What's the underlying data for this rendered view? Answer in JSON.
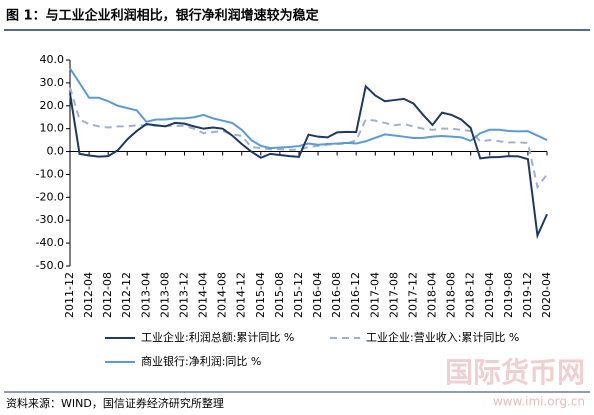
{
  "chart_data": {
    "type": "line",
    "title": "图 1：与工业企业利润相比，银行净利润增速较为稳定",
    "source": "资料来源：WIND，国信证券经济研究所整理",
    "watermark": "国际货币网",
    "watermark_url": "www.imi.org.cn",
    "categories": [
      "2011-12",
      null,
      "2012-04",
      null,
      "2012-08",
      null,
      "2012-12",
      null,
      "2013-04",
      null,
      "2013-08",
      null,
      "2013-12",
      null,
      "2014-04",
      null,
      "2014-08",
      null,
      "2014-12",
      null,
      "2015-04",
      null,
      "2015-08",
      null,
      "2015-12",
      null,
      "2016-04",
      null,
      "2016-08",
      null,
      "2016-12",
      null,
      "2017-04",
      null,
      "2017-08",
      null,
      "2017-12",
      null,
      "2018-04",
      null,
      "2018-08",
      null,
      "2018-12",
      null,
      "2019-04",
      null,
      "2019-08",
      null,
      "2019-12",
      null,
      "2020-04"
    ],
    "series": [
      {
        "name": "工业企业:利润总额:累计同比 %",
        "color": "#1f3864",
        "dashed": false,
        "values": [
          25.4,
          -1,
          -1.7,
          -2.2,
          -2,
          0.5,
          5.3,
          9,
          12,
          11.5,
          11,
          12.5,
          12.2,
          11,
          10,
          10.5,
          10,
          7,
          3.3,
          0,
          -2.7,
          -1,
          -1.5,
          -2,
          -2.3,
          7.4,
          6.5,
          6.2,
          8.4,
          8.6,
          8.5,
          28.5,
          24.5,
          22,
          22.5,
          23,
          21,
          16.1,
          11.6,
          17,
          16,
          14,
          10.3,
          -3,
          -2.5,
          -2.4,
          -2,
          -2.1,
          -3.3,
          -36.7,
          -27.4
        ]
      },
      {
        "name": "工业企业:营业收入:累计同比 %",
        "color": "#9fb1cc",
        "dashed": true,
        "values": [
          28,
          14,
          12,
          11,
          10.5,
          11,
          11,
          11.5,
          11.5,
          11.3,
          11.2,
          11.2,
          11.2,
          10,
          8,
          8.5,
          9,
          7.5,
          6.9,
          2,
          1.5,
          1,
          1,
          0.8,
          0.8,
          2,
          2.5,
          3,
          3.3,
          3.5,
          4.9,
          14,
          13.5,
          12.5,
          11.5,
          12,
          11,
          10,
          9.5,
          10,
          10,
          9.5,
          9,
          4.5,
          5,
          4.5,
          4,
          4,
          3.8,
          -15.5,
          -10
        ]
      },
      {
        "name": "商业银行:净利润:同比 %",
        "color": "#5b9bd5",
        "dashed": false,
        "values": [
          36.3,
          30,
          23.5,
          23.5,
          22,
          20,
          19,
          18,
          13,
          14,
          14,
          14.5,
          14.5,
          15,
          16,
          14.5,
          13.5,
          12.5,
          9.5,
          5,
          2.5,
          1.5,
          1.8,
          2,
          2.4,
          3.5,
          3,
          3.3,
          3.5,
          3.8,
          3.5,
          4.5,
          6,
          7.5,
          7,
          6.5,
          5.9,
          6,
          6.5,
          6.8,
          6.5,
          6.2,
          4.7,
          8,
          9.5,
          9.5,
          9,
          8.8,
          8.9,
          7,
          5
        ]
      }
    ],
    "ylim": [
      -50,
      40
    ],
    "yticks": [
      {
        "value": -50,
        "label": "-50.0"
      },
      {
        "value": -40,
        "label": "-40.0"
      },
      {
        "value": -30,
        "label": "-30.0"
      },
      {
        "value": -20,
        "label": "-20.0"
      },
      {
        "value": -10,
        "label": "-10.0"
      },
      {
        "value": 0,
        "label": "0.0"
      },
      {
        "value": 10,
        "label": "10.0"
      },
      {
        "value": 20,
        "label": "20.0"
      },
      {
        "value": 30,
        "label": "30.0"
      },
      {
        "value": 40,
        "label": "40.0"
      }
    ],
    "grid": false,
    "legend": "bottom"
  }
}
